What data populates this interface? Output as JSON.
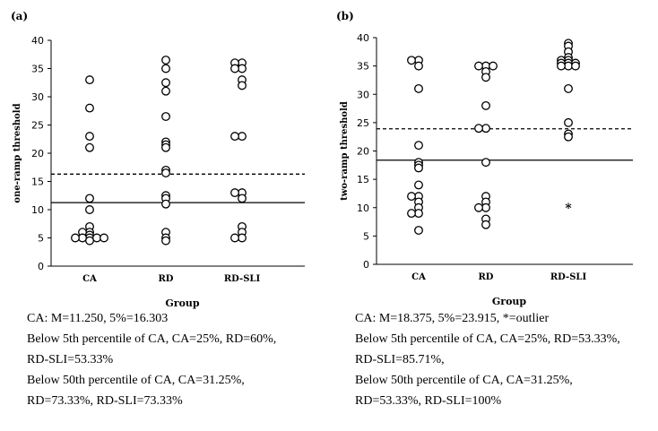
{
  "chart_data": [
    {
      "type": "scatter",
      "panel_label": "(a)",
      "xlabel": "Group",
      "ylabel": "one-ramp threshold",
      "categories": [
        "CA",
        "RD",
        "RD-SLI"
      ],
      "ylim": [
        0,
        40
      ],
      "yticks": [
        0,
        5,
        10,
        15,
        20,
        25,
        30,
        35,
        40
      ],
      "grid": false,
      "reference_lines": [
        {
          "label": "5%",
          "value": 16.303,
          "style": "dashed"
        },
        {
          "label": "M",
          "value": 11.25,
          "style": "solid"
        }
      ],
      "points": [
        {
          "category": "CA",
          "values": [
            33,
            28,
            23,
            21,
            12,
            10,
            7,
            6,
            6,
            5.5,
            5,
            5,
            5,
            5,
            5,
            4.5
          ]
        },
        {
          "category": "RD",
          "values": [
            36.5,
            35,
            32.5,
            31,
            26.5,
            22,
            21.5,
            21,
            17,
            16.5,
            12.5,
            12,
            11,
            6,
            5,
            4.5
          ]
        },
        {
          "category": "RD-SLI",
          "values": [
            36,
            36,
            35,
            35,
            33,
            32,
            23,
            23,
            13,
            13,
            12,
            7,
            6,
            5,
            5
          ]
        }
      ],
      "notes": [
        "CA: M=11.250, 5%=16.303",
        "Below 5th percentile of CA, CA=25%, RD=60%,",
        "RD-SLI=53.33%",
        "Below 50th percentile of CA, CA=31.25%,",
        "RD=73.33%, RD-SLI=73.33%"
      ]
    },
    {
      "type": "scatter",
      "panel_label": "(b)",
      "xlabel": "Group",
      "ylabel": "two-ramp threshold",
      "categories": [
        "CA",
        "RD",
        "RD-SLI"
      ],
      "ylim": [
        0,
        40
      ],
      "yticks": [
        0,
        5,
        10,
        15,
        20,
        25,
        30,
        35,
        40
      ],
      "grid": false,
      "reference_lines": [
        {
          "label": "5%",
          "value": 23.915,
          "style": "dashed"
        },
        {
          "label": "M",
          "value": 18.375,
          "style": "solid"
        }
      ],
      "points": [
        {
          "category": "CA",
          "values": [
            36,
            36,
            35,
            31,
            21,
            18,
            17.5,
            17,
            14,
            12,
            12,
            11,
            10,
            9,
            9,
            6
          ]
        },
        {
          "category": "RD",
          "values": [
            35,
            35,
            35,
            34,
            33,
            28,
            24,
            24,
            18,
            12,
            11,
            10,
            10,
            8,
            7
          ]
        },
        {
          "category": "RD-SLI",
          "values": [
            39,
            38.5,
            37.5,
            36.5,
            36,
            36,
            35.5,
            35.5,
            35.5,
            35,
            35,
            35,
            31,
            25,
            23,
            22.5
          ]
        }
      ],
      "outliers": [
        {
          "category": "RD-SLI",
          "value": 10,
          "marker": "*"
        }
      ],
      "notes": [
        "CA: M=18.375, 5%=23.915, *=outlier",
        "Below 5th percentile of CA, CA=25%, RD=53.33%,",
        "RD-SLI=85.71%,",
        "Below 50th percentile of CA, CA=31.25%,",
        "RD=53.33%, RD-SLI=100%"
      ]
    }
  ]
}
